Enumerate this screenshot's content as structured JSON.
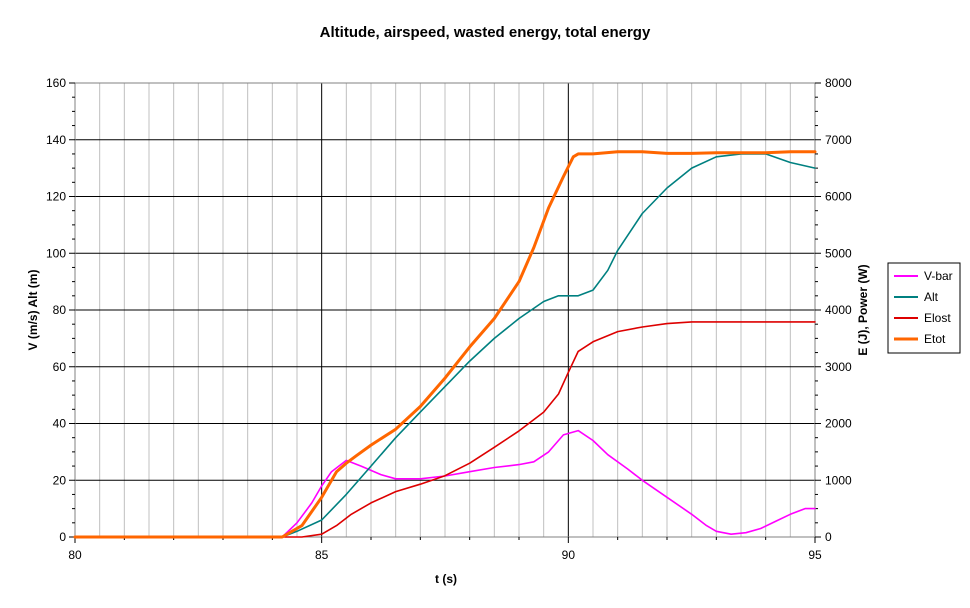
{
  "chart_data": {
    "type": "line",
    "title": "Altitude, airspeed, wasted energy, total energy",
    "xlabel": "t (s)",
    "ylabel_left": "V (m/s) Alt (m)",
    "ylabel_right": "E (J), Power (W)",
    "xlim": [
      80,
      95
    ],
    "ylim_left": [
      0,
      160
    ],
    "ylim_right": [
      0,
      8000
    ],
    "x_ticks": [
      "80",
      "85",
      "90",
      "95"
    ],
    "y_left_ticks": [
      "0",
      "20",
      "40",
      "60",
      "80",
      "100",
      "120",
      "140",
      "160"
    ],
    "y_right_ticks": [
      "0",
      "1000",
      "2000",
      "3000",
      "4000",
      "5000",
      "6000",
      "7000",
      "8000"
    ],
    "grid": true,
    "legend_position": "right",
    "series": [
      {
        "name": "V-bar",
        "axis": "left",
        "color": "#ff00ff",
        "x": [
          80,
          84.2,
          84.5,
          84.8,
          85.0,
          85.2,
          85.5,
          85.8,
          86.2,
          86.5,
          87.0,
          87.5,
          88.0,
          88.5,
          89.0,
          89.3,
          89.6,
          89.9,
          90.2,
          90.5,
          90.8,
          91.2,
          91.5,
          92.0,
          92.5,
          92.8,
          93.0,
          93.3,
          93.6,
          93.9,
          94.2,
          94.5,
          94.8,
          95.0
        ],
        "y": [
          0,
          0,
          5,
          12,
          18,
          23,
          27,
          25,
          22,
          20.5,
          20.5,
          21.5,
          23,
          24.5,
          25.5,
          26.5,
          30,
          36,
          37.5,
          34,
          29,
          24,
          20,
          14,
          8,
          4,
          2,
          1,
          1.5,
          3,
          5.5,
          8,
          10,
          10
        ]
      },
      {
        "name": "Alt",
        "axis": "left",
        "color": "#008080",
        "x": [
          80,
          84.2,
          84.5,
          85.0,
          85.5,
          86.0,
          86.5,
          87.0,
          87.5,
          88.0,
          88.5,
          89.0,
          89.5,
          89.8,
          90.2,
          90.5,
          90.8,
          91.0,
          91.5,
          92.0,
          92.5,
          93.0,
          93.5,
          94.0,
          94.5,
          95.0
        ],
        "y": [
          0,
          0,
          2,
          6,
          15,
          25,
          35,
          44,
          53,
          62,
          70,
          77,
          83,
          85,
          85,
          87,
          94,
          101,
          114,
          123,
          130,
          134,
          135,
          135,
          132,
          130
        ]
      },
      {
        "name": "Elost",
        "axis": "right",
        "color": "#dd0000",
        "x": [
          80,
          84.6,
          85.0,
          85.3,
          85.6,
          86.0,
          86.5,
          87.0,
          87.5,
          88.0,
          88.5,
          89.0,
          89.5,
          89.8,
          90.0,
          90.2,
          90.5,
          91.0,
          91.5,
          92.0,
          92.5,
          93.0,
          94.0,
          95.0
        ],
        "y": [
          0,
          0,
          50,
          200,
          400,
          600,
          800,
          930,
          1080,
          1300,
          1580,
          1870,
          2200,
          2520,
          2900,
          3270,
          3440,
          3620,
          3700,
          3760,
          3790,
          3790,
          3790,
          3790
        ]
      },
      {
        "name": "Etot",
        "axis": "right",
        "color": "#ff6600",
        "x": [
          80,
          84.2,
          84.6,
          85.0,
          85.3,
          85.5,
          85.7,
          86.0,
          86.5,
          87.0,
          87.5,
          88.0,
          88.5,
          89.0,
          89.3,
          89.6,
          89.9,
          90.1,
          90.2,
          90.5,
          91.0,
          91.5,
          92.0,
          92.5,
          93.0,
          93.5,
          94.0,
          94.5,
          95.0
        ],
        "y": [
          0,
          0,
          200,
          700,
          1150,
          1300,
          1430,
          1620,
          1900,
          2300,
          2800,
          3350,
          3850,
          4500,
          5100,
          5800,
          6350,
          6700,
          6750,
          6750,
          6790,
          6790,
          6760,
          6760,
          6770,
          6770,
          6770,
          6790,
          6790
        ]
      }
    ]
  }
}
